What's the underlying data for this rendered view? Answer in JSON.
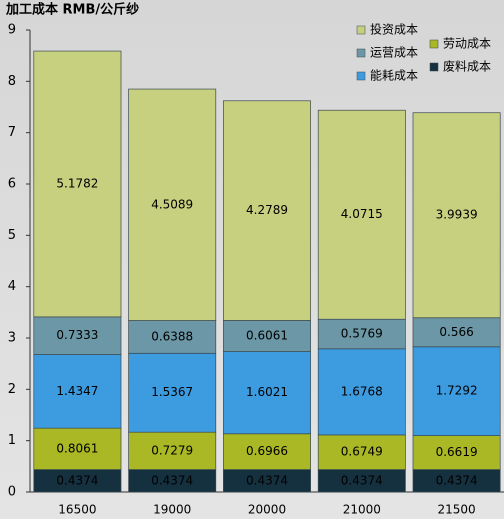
{
  "chart_data": {
    "type": "stacked_bar",
    "title": "加工成本 RMB/公斤纱",
    "categories": [
      "16500",
      "19000",
      "20000",
      "21000",
      "21500"
    ],
    "series": [
      {
        "name": "废料成本",
        "color": "#15303f",
        "values": [
          0.4374,
          0.4374,
          0.4374,
          0.4374,
          0.4374
        ]
      },
      {
        "name": "劳动成本",
        "color": "#a9b824",
        "values": [
          0.8061,
          0.7279,
          0.6966,
          0.6749,
          0.6619
        ]
      },
      {
        "name": "能耗成本",
        "color": "#3d9be0",
        "values": [
          1.4347,
          1.5367,
          1.6021,
          1.6768,
          1.7292
        ]
      },
      {
        "name": "运营成本",
        "color": "#6b97a6",
        "values": [
          0.7333,
          0.6388,
          0.6061,
          0.5769,
          0.566
        ]
      },
      {
        "name": "投资成本",
        "color": "#c7d07e",
        "values": [
          5.1782,
          4.5089,
          4.2789,
          4.0715,
          3.9939
        ]
      }
    ],
    "ylim": [
      0,
      9
    ],
    "yticks": [
      0,
      1,
      2,
      3,
      4,
      5,
      6,
      7,
      8,
      9
    ],
    "grid": false,
    "legend": "top-right"
  }
}
